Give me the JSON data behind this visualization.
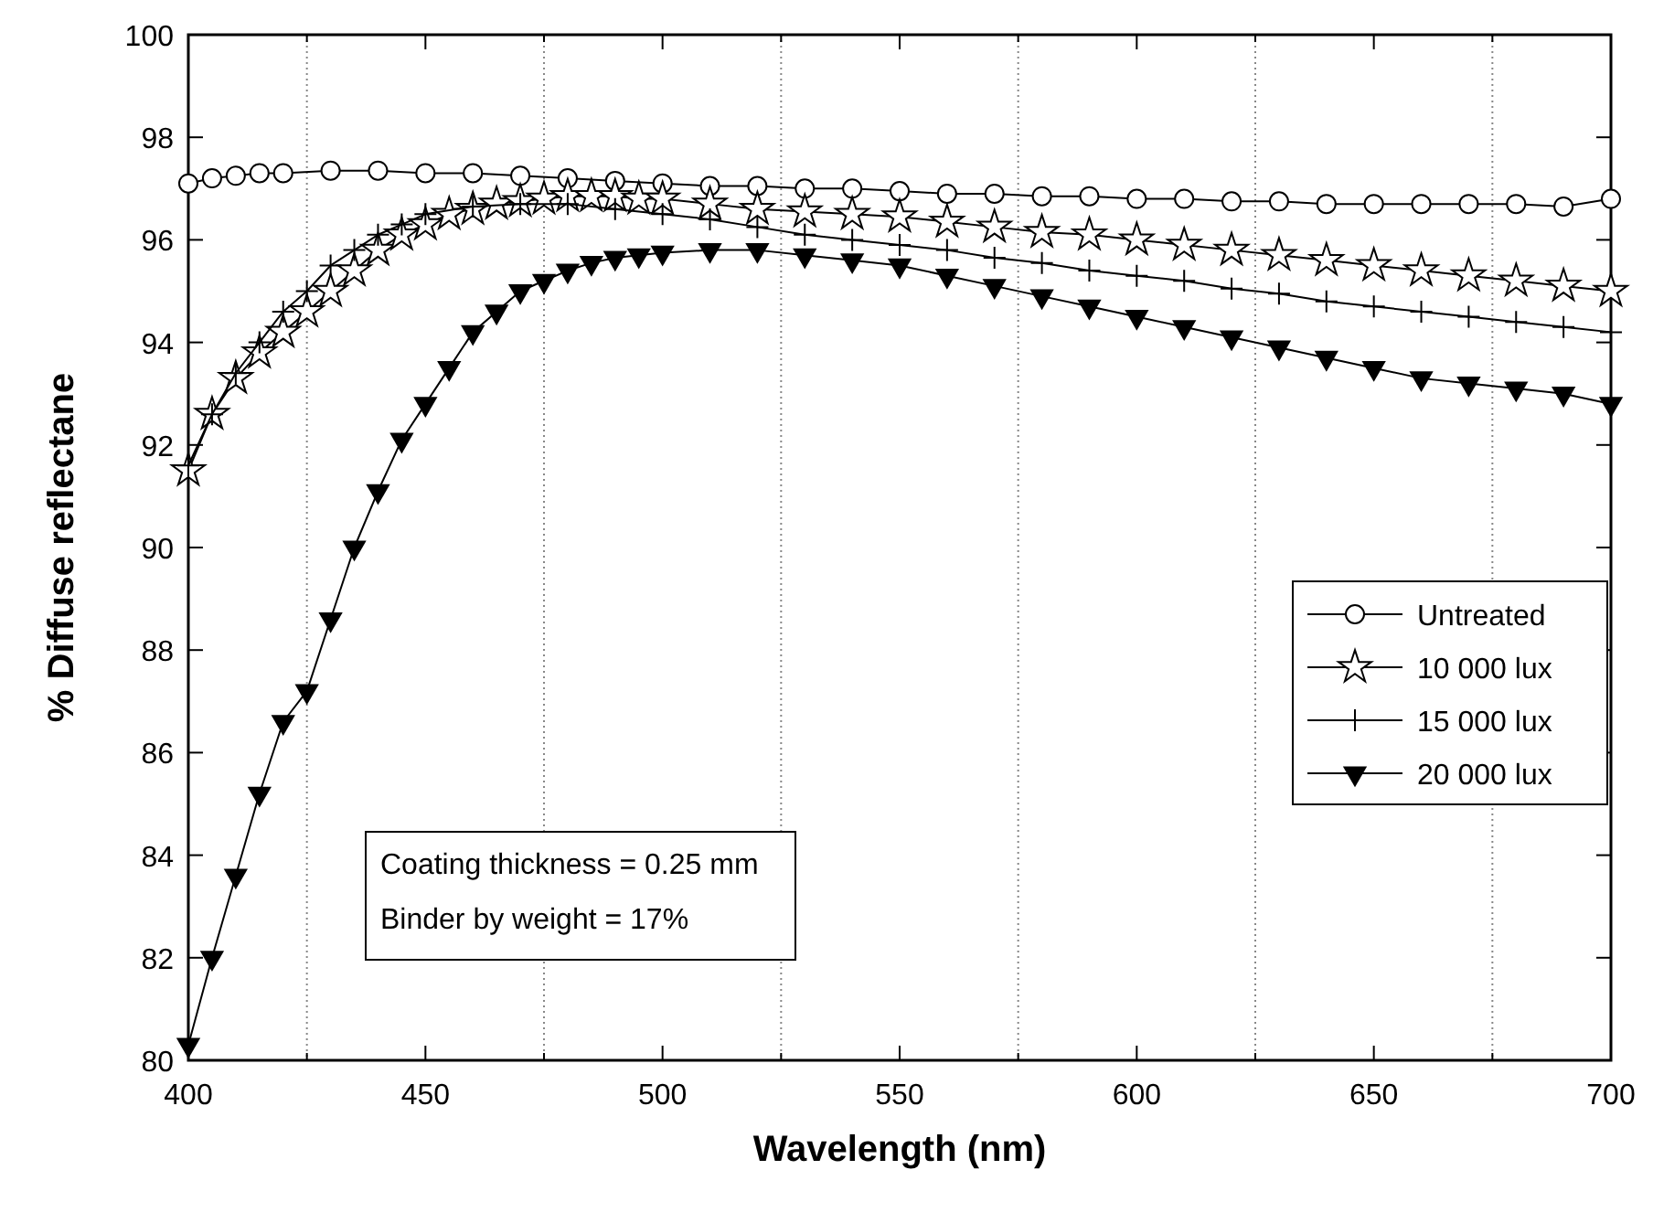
{
  "chart_data": {
    "type": "line",
    "xlabel": "Wavelength (nm)",
    "ylabel": "% Diffuse reflectane",
    "xlim": [
      400,
      700
    ],
    "ylim": [
      80,
      100
    ],
    "xticks": [
      400,
      {
        "value": 425,
        "label": null
      },
      450,
      {
        "value": 475,
        "label": null
      },
      500,
      {
        "value": 525,
        "label": null
      },
      550,
      {
        "value": 575,
        "label": null
      },
      600,
      {
        "value": 625,
        "label": null
      },
      650,
      {
        "value": 675,
        "label": null
      },
      700
    ],
    "yticks": [
      80,
      82,
      84,
      86,
      88,
      90,
      92,
      94,
      96,
      98,
      100
    ],
    "grid": "x",
    "legend": "bottom right",
    "line_style": "solid",
    "annotations": [
      "Coating thickness = 0.25 mm",
      "Binder by weight = 17%"
    ],
    "series": [
      {
        "name": "Untreated",
        "color": "#000000",
        "marker": "circle",
        "x": [
          400,
          405,
          410,
          415,
          420,
          430,
          440,
          450,
          460,
          470,
          480,
          490,
          500,
          510,
          520,
          530,
          540,
          550,
          560,
          570,
          580,
          590,
          600,
          610,
          620,
          630,
          640,
          650,
          660,
          670,
          680,
          690,
          700
        ],
        "values": [
          97.1,
          97.2,
          97.25,
          97.3,
          97.3,
          97.35,
          97.35,
          97.3,
          97.3,
          97.25,
          97.2,
          97.15,
          97.1,
          97.05,
          97.05,
          97.0,
          97.0,
          96.95,
          96.9,
          96.9,
          96.85,
          96.85,
          96.8,
          96.8,
          96.75,
          96.75,
          96.7,
          96.7,
          96.7,
          96.7,
          96.7,
          96.65,
          96.8
        ]
      },
      {
        "name": "10 000 lux",
        "color": "#000000",
        "marker": "star",
        "x": [
          400,
          405,
          410,
          415,
          420,
          425,
          430,
          435,
          440,
          445,
          450,
          455,
          460,
          465,
          470,
          475,
          480,
          485,
          490,
          495,
          500,
          510,
          520,
          530,
          540,
          550,
          560,
          570,
          580,
          590,
          600,
          610,
          620,
          630,
          640,
          650,
          660,
          670,
          680,
          690,
          700
        ],
        "values": [
          91.5,
          92.6,
          93.3,
          93.8,
          94.2,
          94.6,
          95.0,
          95.4,
          95.8,
          96.1,
          96.3,
          96.5,
          96.6,
          96.7,
          96.75,
          96.8,
          96.85,
          96.85,
          96.85,
          96.8,
          96.8,
          96.7,
          96.6,
          96.55,
          96.5,
          96.45,
          96.35,
          96.25,
          96.15,
          96.1,
          96.0,
          95.9,
          95.8,
          95.7,
          95.6,
          95.5,
          95.4,
          95.3,
          95.2,
          95.1,
          95.0
        ]
      },
      {
        "name": "15 000 lux",
        "color": "#000000",
        "marker": "cross",
        "x": [
          400,
          405,
          410,
          415,
          420,
          425,
          430,
          435,
          440,
          445,
          450,
          460,
          470,
          480,
          490,
          500,
          510,
          520,
          530,
          540,
          550,
          560,
          570,
          580,
          590,
          600,
          610,
          620,
          630,
          640,
          650,
          660,
          670,
          680,
          690,
          700
        ],
        "values": [
          91.6,
          92.6,
          93.4,
          94.0,
          94.6,
          95.0,
          95.5,
          95.8,
          96.1,
          96.3,
          96.5,
          96.65,
          96.7,
          96.7,
          96.6,
          96.5,
          96.4,
          96.25,
          96.1,
          96.0,
          95.9,
          95.8,
          95.65,
          95.55,
          95.4,
          95.3,
          95.2,
          95.05,
          94.95,
          94.8,
          94.7,
          94.6,
          94.5,
          94.4,
          94.3,
          94.2
        ]
      },
      {
        "name": "20 000 lux",
        "color": "#000000",
        "marker": "triangle",
        "x": [
          400,
          405,
          410,
          415,
          420,
          425,
          430,
          435,
          440,
          445,
          450,
          455,
          460,
          465,
          470,
          475,
          480,
          485,
          490,
          495,
          500,
          510,
          520,
          530,
          540,
          550,
          560,
          570,
          580,
          590,
          600,
          610,
          620,
          630,
          640,
          650,
          660,
          670,
          680,
          690,
          700
        ],
        "values": [
          80.3,
          82.0,
          83.6,
          85.2,
          86.6,
          87.2,
          88.6,
          90.0,
          91.1,
          92.1,
          92.8,
          93.5,
          94.2,
          94.6,
          95.0,
          95.2,
          95.4,
          95.55,
          95.65,
          95.7,
          95.75,
          95.8,
          95.8,
          95.7,
          95.6,
          95.5,
          95.3,
          95.1,
          94.9,
          94.7,
          94.5,
          94.3,
          94.1,
          93.9,
          93.7,
          93.5,
          93.3,
          93.2,
          93.1,
          93.0,
          92.8
        ]
      }
    ]
  }
}
